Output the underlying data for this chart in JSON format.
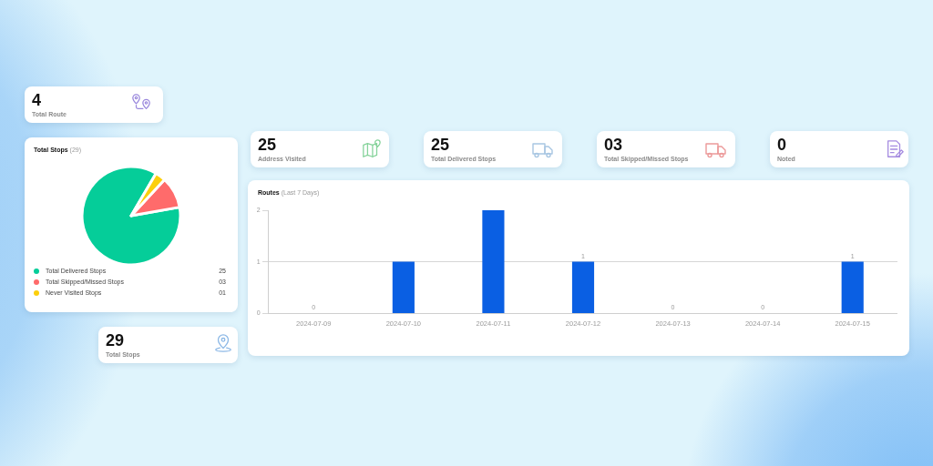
{
  "chart_data": [
    {
      "type": "other",
      "title": "Total Route",
      "annotations": [
        "4"
      ]
    },
    {
      "type": "pie",
      "title": "Total Stops",
      "subtitle": "(29)",
      "categories": [
        "Total Delivered Stops",
        "Total Skipped/Missed Stops",
        "Never Visited Stops"
      ],
      "values": [
        25,
        3,
        1
      ],
      "colors": [
        "#05cd99",
        "#ff6b6b",
        "#fccf0c"
      ],
      "value_labels": [
        "25",
        "03",
        "01"
      ],
      "legend": "bottom"
    },
    {
      "type": "other",
      "title": "Address Visited",
      "annotations": [
        "25"
      ]
    },
    {
      "type": "other",
      "title": "Total Delivered Stops",
      "annotations": [
        "25"
      ]
    },
    {
      "type": "other",
      "title": "Total Skipped/Missed Stops",
      "annotations": [
        "03"
      ]
    },
    {
      "type": "other",
      "title": "Noted",
      "annotations": [
        "0"
      ]
    },
    {
      "type": "bar",
      "title": "Routes",
      "subtitle": "(Last 7 Days)",
      "categories": [
        "2024-07-09",
        "2024-07-10",
        "2024-07-11",
        "2024-07-12",
        "2024-07-13",
        "2024-07-14",
        "2024-07-15"
      ],
      "values": [
        0,
        1,
        2,
        1,
        0,
        0,
        1
      ],
      "color": "#0a5fe3",
      "value_labels": [
        "0",
        null,
        null,
        "1",
        "0",
        "0",
        "1"
      ],
      "ylim": [
        0,
        2
      ],
      "yticks": [
        0,
        1,
        2
      ],
      "grid": "y"
    },
    {
      "type": "other",
      "title": "Total Stops",
      "annotations": [
        "29"
      ]
    }
  ]
}
